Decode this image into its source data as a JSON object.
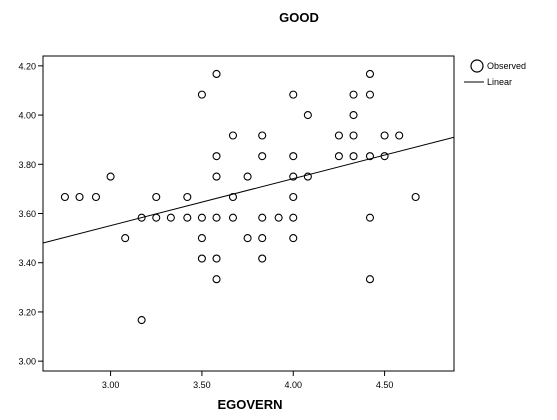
{
  "chart_data": {
    "type": "scatter",
    "title": "GOOD",
    "xlabel": "EGOVERN",
    "ylabel": "",
    "xlim": [
      2.63,
      4.88
    ],
    "ylim": [
      2.96,
      4.24
    ],
    "xticks": [
      "3.00",
      "3.50",
      "4.00",
      "4.50"
    ],
    "yticks": [
      "3.00",
      "3.20",
      "3.40",
      "3.60",
      "3.80",
      "4.00",
      "4.20"
    ],
    "xtick_values": [
      3.0,
      3.5,
      4.0,
      4.5
    ],
    "ytick_values": [
      3.0,
      3.2,
      3.4,
      3.6,
      3.8,
      4.0,
      4.2
    ],
    "grid": false,
    "legend": {
      "placement": "top-right-outside",
      "entries": [
        "Observed",
        "Linear"
      ]
    },
    "colors": {
      "marker": "#000000",
      "line": "#000000"
    },
    "series": [
      {
        "name": "Observed",
        "type": "scatter",
        "points": [
          [
            2.75,
            3.667
          ],
          [
            2.83,
            3.667
          ],
          [
            2.92,
            3.667
          ],
          [
            3.0,
            3.75
          ],
          [
            3.08,
            3.5
          ],
          [
            3.17,
            3.583
          ],
          [
            3.17,
            3.167
          ],
          [
            3.25,
            3.667
          ],
          [
            3.25,
            3.583
          ],
          [
            3.33,
            3.583
          ],
          [
            3.42,
            3.667
          ],
          [
            3.42,
            3.583
          ],
          [
            3.5,
            4.083
          ],
          [
            3.5,
            3.583
          ],
          [
            3.5,
            3.5
          ],
          [
            3.5,
            3.417
          ],
          [
            3.58,
            4.167
          ],
          [
            3.58,
            3.833
          ],
          [
            3.58,
            3.75
          ],
          [
            3.58,
            3.583
          ],
          [
            3.58,
            3.417
          ],
          [
            3.58,
            3.333
          ],
          [
            3.67,
            3.917
          ],
          [
            3.67,
            3.667
          ],
          [
            3.67,
            3.583
          ],
          [
            3.75,
            3.75
          ],
          [
            3.75,
            3.5
          ],
          [
            3.83,
            3.917
          ],
          [
            3.83,
            3.833
          ],
          [
            3.83,
            3.583
          ],
          [
            3.83,
            3.5
          ],
          [
            3.83,
            3.417
          ],
          [
            3.92,
            3.583
          ],
          [
            4.0,
            4.083
          ],
          [
            4.0,
            3.833
          ],
          [
            4.0,
            3.75
          ],
          [
            4.0,
            3.667
          ],
          [
            4.0,
            3.583
          ],
          [
            4.0,
            3.5
          ],
          [
            4.08,
            4.0
          ],
          [
            4.08,
            3.75
          ],
          [
            4.25,
            3.917
          ],
          [
            4.25,
            3.833
          ],
          [
            4.33,
            4.083
          ],
          [
            4.33,
            4.0
          ],
          [
            4.33,
            3.917
          ],
          [
            4.33,
            3.833
          ],
          [
            4.42,
            4.167
          ],
          [
            4.42,
            4.083
          ],
          [
            4.42,
            3.833
          ],
          [
            4.42,
            3.583
          ],
          [
            4.42,
            3.333
          ],
          [
            4.5,
            3.917
          ],
          [
            4.5,
            3.833
          ],
          [
            4.58,
            3.917
          ],
          [
            4.67,
            3.667
          ]
        ]
      },
      {
        "name": "Linear",
        "type": "line",
        "points": [
          [
            2.63,
            3.48
          ],
          [
            4.88,
            3.91
          ]
        ]
      }
    ]
  }
}
